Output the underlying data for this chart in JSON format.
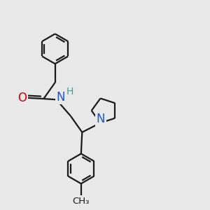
{
  "background_color": "#e8e8e8",
  "bond_color": "#1a1a1a",
  "bond_width": 1.6,
  "atom_colors": {
    "O": "#cc0000",
    "N": "#2255cc",
    "H": "#449999",
    "C": "#1a1a1a"
  }
}
